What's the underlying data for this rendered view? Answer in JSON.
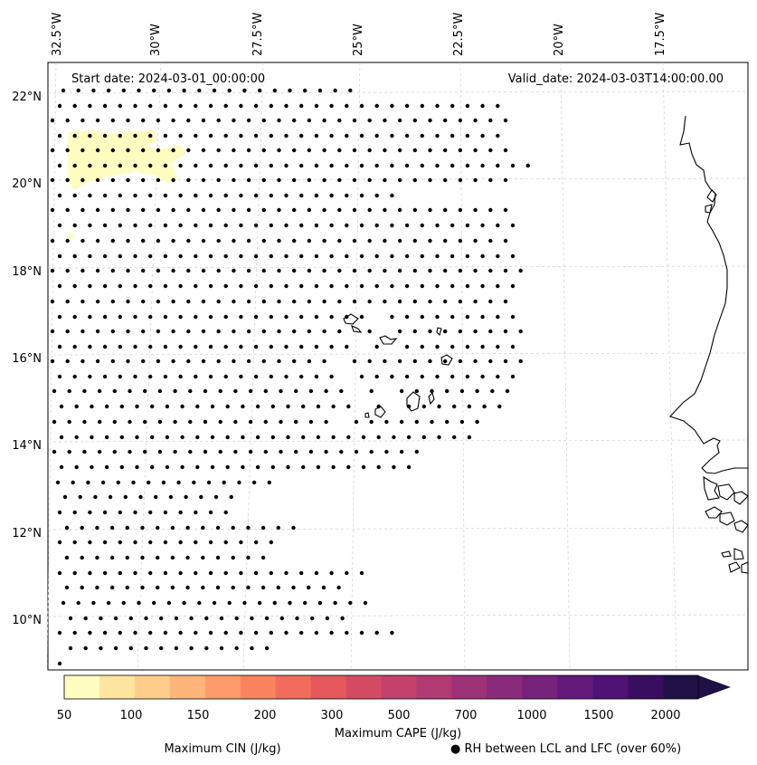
{
  "header": {
    "start_date": "Start date: 2024-03-01_00:00:00",
    "valid_date": "Valid_date: 2024-03-03T14:00:00.00"
  },
  "axes": {
    "lon_ticks": [
      "32.5°W",
      "30°W",
      "27.5°W",
      "25°W",
      "22.5°W",
      "20°W",
      "17.5°W"
    ],
    "lat_ticks": [
      "22°N",
      "20°N",
      "18°N",
      "16°N",
      "14°N",
      "12°N",
      "10°N"
    ]
  },
  "colorbar": {
    "label": "Maximum CAPE (J/kg)",
    "tick_labels": [
      "50",
      "100",
      "150",
      "200",
      "300",
      "500",
      "700",
      "1000",
      "1500",
      "2000"
    ],
    "colors": [
      "#fffdc0",
      "#fee5a0",
      "#fecd8c",
      "#feb57a",
      "#fd9c6a",
      "#f9845e",
      "#f26c5c",
      "#e5585d",
      "#d64b64",
      "#c4416c",
      "#b13a73",
      "#9d3277",
      "#8a2a7a",
      "#77227b",
      "#631a7a",
      "#4f1275",
      "#390e60",
      "#1f1046"
    ]
  },
  "legend": {
    "cin_label": "Maximum CIN (J/kg)",
    "cin_color": "#ff0000",
    "rh_label": "● RH between LCL and LFC (over 60%)"
  },
  "colors": {
    "coastline": "#000000",
    "gridline": "#c8c8c8",
    "cape_patch": "#fffdc0",
    "rh_dot": "#000000"
  }
}
